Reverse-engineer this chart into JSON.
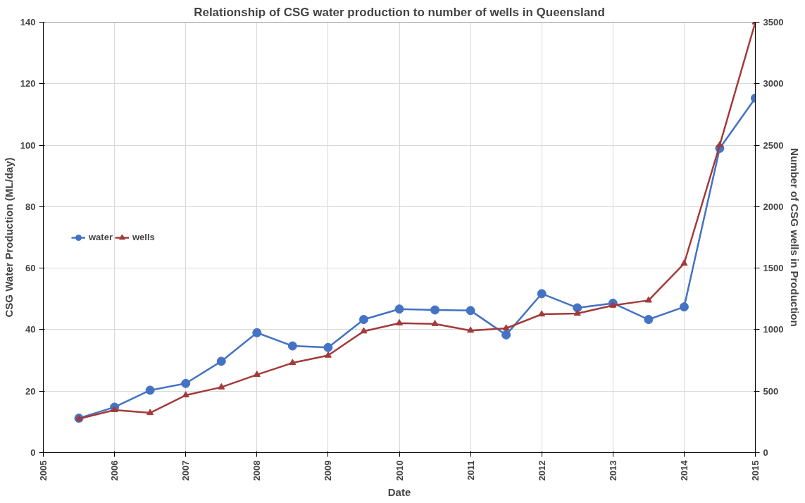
{
  "chart_data": {
    "type": "line",
    "title": "Relationship of CSG water production to number of wells in Queensland",
    "xlabel": "Date",
    "ylabel": "CSG Water Production (ML/day)",
    "y2label": "Number of CSG wells in Production",
    "x": [
      2005.5,
      2006,
      2006.5,
      2007,
      2007.5,
      2008,
      2008.5,
      2009,
      2009.5,
      2010,
      2010.5,
      2011,
      2011.5,
      2012,
      2012.5,
      2013,
      2013.5,
      2014,
      2014.5,
      2015
    ],
    "series": [
      {
        "name": "water",
        "color": "#4472c4",
        "marker": "circle",
        "values": [
          11.2,
          14.8,
          20.3,
          22.5,
          29.7,
          39.0,
          34.7,
          34.2,
          43.3,
          46.7,
          46.4,
          46.2,
          38.3,
          51.7,
          47.1,
          48.6,
          43.3,
          47.4,
          99.0,
          115.3
        ]
      },
      {
        "name": "wells",
        "color": "#a33a3a",
        "marker": "triangle",
        "axis": "y2",
        "values": [
          275,
          347,
          323,
          467,
          532,
          634,
          730,
          790,
          987,
          1053,
          1047,
          993,
          1011,
          1125,
          1131,
          1197,
          1238,
          1538,
          2501,
          3500
        ]
      }
    ],
    "xlim": [
      2005,
      2015
    ],
    "xticks": [
      2005,
      2006,
      2007,
      2008,
      2009,
      2010,
      2011,
      2012,
      2013,
      2014,
      2015
    ],
    "ylim": [
      0,
      140
    ],
    "yticks": [
      0,
      20,
      40,
      60,
      80,
      100,
      120,
      140
    ],
    "y2lim": [
      0,
      3500
    ],
    "y2ticks": [
      0,
      500,
      1000,
      1500,
      2000,
      2500,
      3000,
      3500
    ],
    "grid": true,
    "legend": "center left",
    "line_style": "solid"
  }
}
